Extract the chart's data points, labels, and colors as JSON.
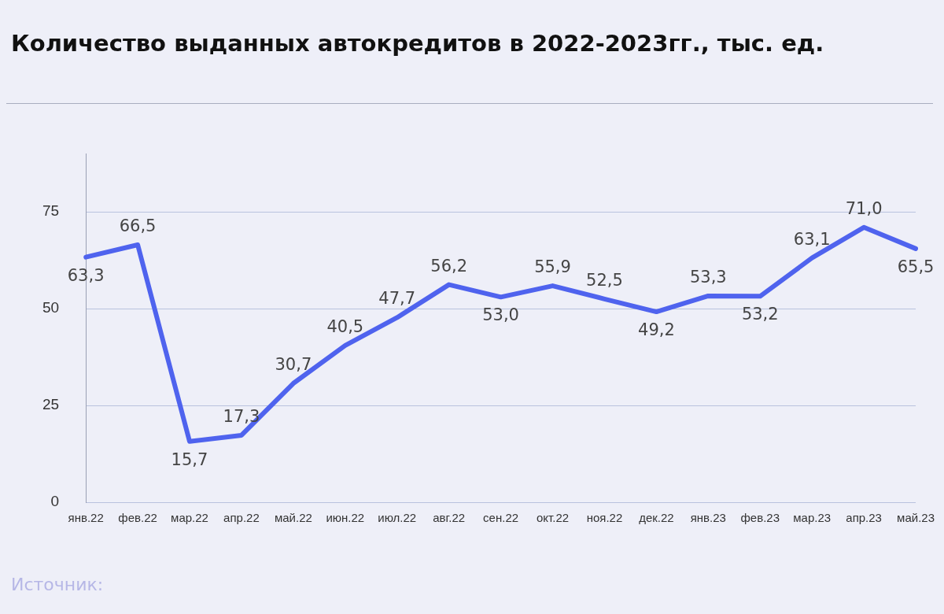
{
  "chart_data": {
    "type": "line",
    "title": "Количество выданных автокредитов в 2022-2023гг., тыс. ед.",
    "categories": [
      "янв.22",
      "фев.22",
      "мар.22",
      "апр.22",
      "май.22",
      "июн.22",
      "июл.22",
      "авг.22",
      "сен.22",
      "окт.22",
      "ноя.22",
      "дек.22",
      "янв.23",
      "фев.23",
      "мар.23",
      "апр.23",
      "май.23"
    ],
    "series": [
      {
        "color": "#4f63ee",
        "values": [
          63.3,
          66.5,
          15.7,
          17.3,
          30.7,
          40.5,
          47.7,
          56.2,
          53.0,
          55.9,
          52.5,
          49.2,
          53.3,
          53.2,
          63.1,
          71.0,
          65.5
        ],
        "value_labels": [
          "63,3",
          "66,5",
          "15,7",
          "17,3",
          "30,7",
          "40,5",
          "47,7",
          "56,2",
          "53,0",
          "55,9",
          "52,5",
          "49,2",
          "53,3",
          "53,2",
          "63,1",
          "71,0",
          "65,5"
        ]
      }
    ],
    "ylim": [
      0,
      90
    ],
    "yticks": [
      0,
      25,
      50,
      75
    ],
    "grid": "y",
    "legend": false,
    "marker": "none",
    "line_style": "solid",
    "annotations": [
      "Источник:"
    ]
  }
}
